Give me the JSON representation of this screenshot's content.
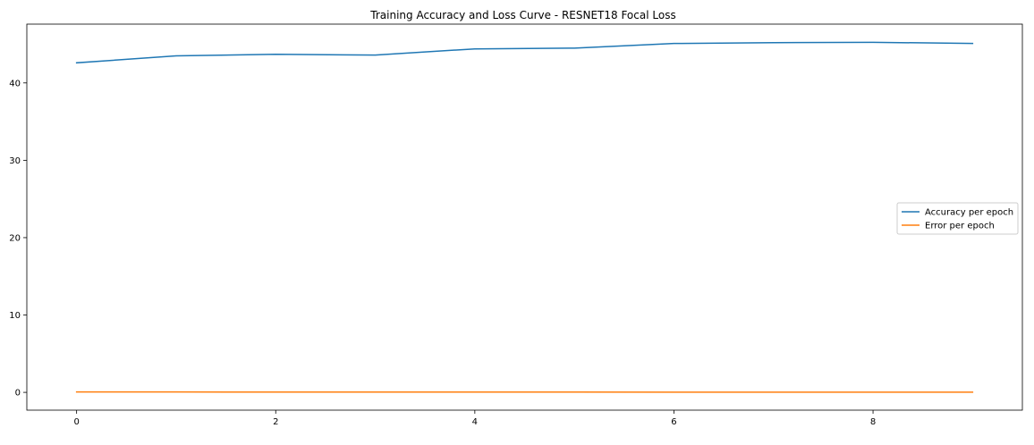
{
  "chart_data": {
    "type": "line",
    "title": "Training Accuracy and Loss Curve - RESNET18 Focal Loss",
    "xlabel": "",
    "ylabel": "",
    "x": [
      0,
      1,
      2,
      3,
      4,
      5,
      6,
      7,
      8,
      9
    ],
    "xlim": [
      -0.5,
      9.5
    ],
    "ylim": [
      -2.3,
      47.6
    ],
    "xticks": [
      0,
      2,
      4,
      6,
      8
    ],
    "yticks": [
      0,
      10,
      20,
      30,
      40
    ],
    "grid": false,
    "legend_position": "center-right",
    "series": [
      {
        "name": "Accuracy per epoch",
        "color": "#1f77b4",
        "values": [
          42.6,
          43.5,
          43.7,
          43.6,
          44.4,
          44.5,
          45.1,
          45.2,
          45.25,
          45.1
        ]
      },
      {
        "name": "Error per epoch",
        "color": "#ff7f0e",
        "values": [
          0.05,
          0.05,
          0.04,
          0.04,
          0.04,
          0.04,
          0.03,
          0.03,
          0.03,
          0.03
        ]
      }
    ]
  }
}
